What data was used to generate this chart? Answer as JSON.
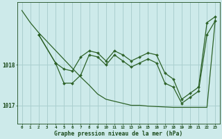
{
  "background_color": "#cdeaea",
  "plot_bg_color": "#cdeaea",
  "grid_color": "#aacfcf",
  "line_color": "#2d6228",
  "text_color": "#1a4a1a",
  "xlabel": "Graphe pression niveau de la mer (hPa)",
  "x_ticks": [
    0,
    1,
    2,
    3,
    4,
    5,
    6,
    7,
    8,
    9,
    10,
    11,
    12,
    13,
    14,
    15,
    16,
    17,
    18,
    19,
    20,
    21,
    22,
    23
  ],
  "xlim": [
    -0.5,
    23.5
  ],
  "ylim": [
    1016.55,
    1019.55
  ],
  "yticks": [
    1017,
    1018
  ],
  "series1_no_marker": {
    "x": [
      0,
      1,
      23
    ],
    "y": [
      1019.35,
      1019.05,
      1019.15
    ]
  },
  "series1_diag": {
    "x": [
      0,
      1,
      2,
      3,
      4,
      5,
      6,
      7,
      8,
      9,
      10,
      11,
      12,
      13,
      14,
      15,
      16,
      17,
      18,
      19,
      20,
      21,
      22,
      23
    ],
    "y": [
      1019.35,
      1019.05,
      1018.8,
      1018.58,
      1018.36,
      1018.14,
      1017.92,
      1017.7,
      1017.5,
      1017.28,
      1017.15,
      1017.1,
      1017.05,
      1017.0,
      1017.0,
      1016.98,
      1016.97,
      1016.96,
      1016.95,
      1016.95,
      1016.95,
      1016.95,
      1016.95,
      1019.15
    ]
  },
  "series2": {
    "x": [
      2,
      4,
      5,
      6,
      7,
      8,
      9,
      10,
      11,
      12,
      13,
      14,
      15,
      16,
      17,
      18,
      19,
      20,
      21,
      22,
      23
    ],
    "y": [
      1018.75,
      1018.05,
      1017.9,
      1017.85,
      1018.2,
      1018.35,
      1018.3,
      1018.1,
      1018.35,
      1018.25,
      1018.1,
      1018.2,
      1018.3,
      1018.25,
      1017.8,
      1017.65,
      1017.15,
      1017.3,
      1017.45,
      1019.05,
      1019.2
    ]
  },
  "series3": {
    "x": [
      2,
      4,
      5,
      6,
      7,
      8,
      9,
      10,
      11,
      12,
      13,
      14,
      15,
      16,
      17,
      18,
      19,
      20,
      21,
      22,
      23
    ],
    "y": [
      1018.75,
      1018.05,
      1017.55,
      1017.55,
      1017.75,
      1018.25,
      1018.2,
      1018.0,
      1018.25,
      1018.1,
      1017.95,
      1018.05,
      1018.15,
      1018.05,
      1017.55,
      1017.45,
      1017.05,
      1017.2,
      1017.35,
      1018.75,
      1019.1
    ]
  }
}
